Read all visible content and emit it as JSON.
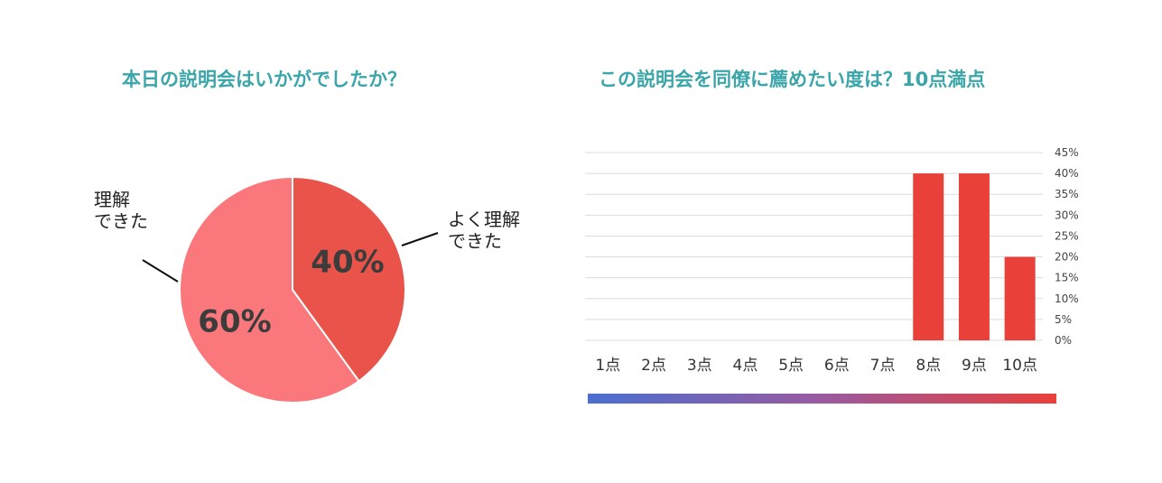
{
  "pie_title": "本日の説明会はいかがでしたか？",
  "bar_title": "この説明会を同僚に薦めたい度は？10点満点",
  "chart_data": [
    {
      "type": "pie",
      "title": "本日の説明会はいかがでしたか？",
      "slices": [
        {
          "label_lines": [
            "よく理解",
            "できた"
          ],
          "value": 40,
          "label": "40%",
          "color": "#e9534a"
        },
        {
          "label_lines": [
            "理解",
            "できた"
          ],
          "value": 60,
          "label": "60%",
          "color": "#fa787c"
        }
      ]
    },
    {
      "type": "bar",
      "title": "この説明会を同僚に薦めたい度は？10点満点",
      "categories": [
        "1点",
        "2点",
        "3点",
        "4点",
        "5点",
        "6点",
        "7点",
        "8点",
        "9点",
        "10点"
      ],
      "values": [
        0,
        0,
        0,
        0,
        0,
        0,
        0,
        40,
        40,
        20
      ],
      "ylim": [
        0,
        45
      ],
      "yticks": [
        "0%",
        "5%",
        "10%",
        "15%",
        "20%",
        "25%",
        "30%",
        "35%",
        "40%",
        "45%"
      ],
      "y_axis_side": "right",
      "grid": true,
      "bar_color": "#e9403a",
      "gradient_colors": [
        "#4a6fd0",
        "#9a5aa0",
        "#e9403a"
      ]
    }
  ]
}
